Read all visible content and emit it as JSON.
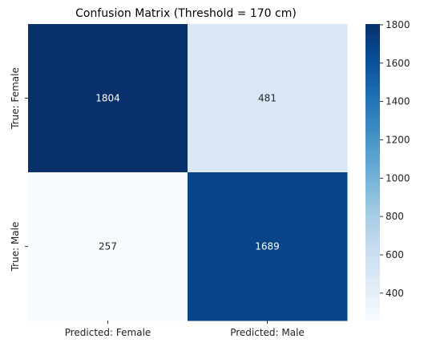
{
  "chart_data": {
    "type": "heatmap",
    "title": "Confusion Matrix (Threshold = 170 cm)",
    "x_labels": [
      "Predicted: Female",
      "Predicted: Male"
    ],
    "y_labels": [
      "True: Female",
      "True: Male"
    ],
    "values": [
      [
        1804,
        481
      ],
      [
        257,
        1689
      ]
    ],
    "colormap": "Blues",
    "colorbar": {
      "min": 257,
      "max": 1804,
      "ticks": [
        400,
        600,
        800,
        1000,
        1200,
        1400,
        1600,
        1800
      ]
    },
    "grid": false
  }
}
